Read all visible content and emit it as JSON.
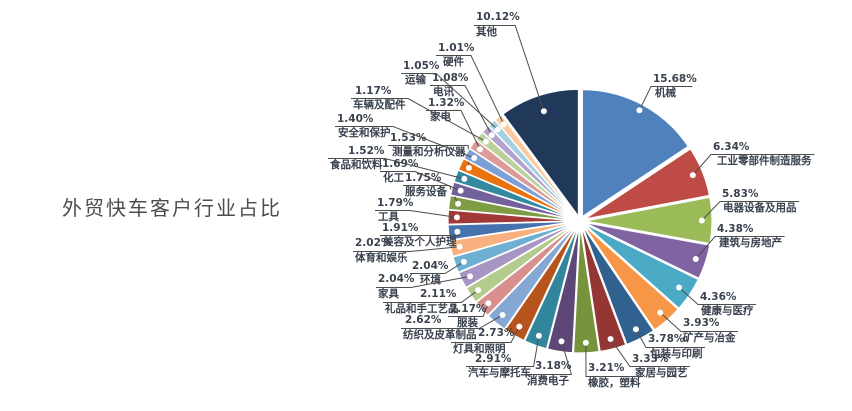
{
  "title": "外贸快车客户行业占比",
  "chart_data": {
    "type": "pie",
    "title": "外贸快车客户行业占比",
    "unit": "%",
    "total": 100.0,
    "start_angle_deg": 0,
    "direction": "clockwise",
    "legend_position": "none",
    "label_style": "callout-percent-and-name",
    "slices": [
      {
        "label": "机械",
        "value": 15.68,
        "color": "#4F81BD"
      },
      {
        "label": "工业零部件制造服务",
        "value": 6.34,
        "color": "#BF4B47"
      },
      {
        "label": "电器设备及用品",
        "value": 5.83,
        "color": "#9BBB59"
      },
      {
        "label": "建筑与房地产",
        "value": 4.38,
        "color": "#8064A2"
      },
      {
        "label": "健康与医疗",
        "value": 4.36,
        "color": "#4AA9C5"
      },
      {
        "label": "矿产与冶金",
        "value": 3.93,
        "color": "#F79646"
      },
      {
        "label": "包装与印刷",
        "value": 3.78,
        "color": "#31618F"
      },
      {
        "label": "家居与园艺",
        "value": 3.33,
        "color": "#943634"
      },
      {
        "label": "橡胶，塑料",
        "value": 3.21,
        "color": "#77933C"
      },
      {
        "label": "消费电子",
        "value": 3.18,
        "color": "#5C4776"
      },
      {
        "label": "汽车与摩托车",
        "value": 2.91,
        "color": "#31859C"
      },
      {
        "label": "灯具和照明",
        "value": 2.73,
        "color": "#B5551D"
      },
      {
        "label": "纺织及皮革制品",
        "value": 2.62,
        "color": "#84A7D4"
      },
      {
        "label": "服装",
        "value": 2.17,
        "color": "#D98F8D"
      },
      {
        "label": "礼品和手工艺品",
        "value": 2.11,
        "color": "#B3CC8E"
      },
      {
        "label": "家具",
        "value": 2.04,
        "color": "#A795C4"
      },
      {
        "label": "环境",
        "value": 2.04,
        "color": "#6FB0D2"
      },
      {
        "label": "体育和娱乐",
        "value": 2.02,
        "color": "#F8B17E"
      },
      {
        "label": "美容及个人护理",
        "value": 1.91,
        "color": "#4672AE"
      },
      {
        "label": "工具",
        "value": 1.79,
        "color": "#A03937"
      },
      {
        "label": "服务设备",
        "value": 1.75,
        "color": "#7D9C44"
      },
      {
        "label": "化工",
        "value": 1.69,
        "color": "#73619B"
      },
      {
        "label": "食品和饮料",
        "value": 1.52,
        "color": "#338A9F"
      },
      {
        "label": "测量和分析仪器",
        "value": 1.53,
        "color": "#E9740F"
      },
      {
        "label": "安全和保护",
        "value": 1.4,
        "color": "#7C9FD5"
      },
      {
        "label": "家电",
        "value": 1.32,
        "color": "#DD9A98"
      },
      {
        "label": "车辆及配件",
        "value": 1.17,
        "color": "#BCD09A"
      },
      {
        "label": "电讯",
        "value": 1.08,
        "color": "#B2A3CE"
      },
      {
        "label": "运输",
        "value": 1.05,
        "color": "#A5D0E2"
      },
      {
        "label": "硬件",
        "value": 1.01,
        "color": "#FBCA9C"
      },
      {
        "label": "其他",
        "value": 10.12,
        "color": "#20395B"
      }
    ]
  }
}
